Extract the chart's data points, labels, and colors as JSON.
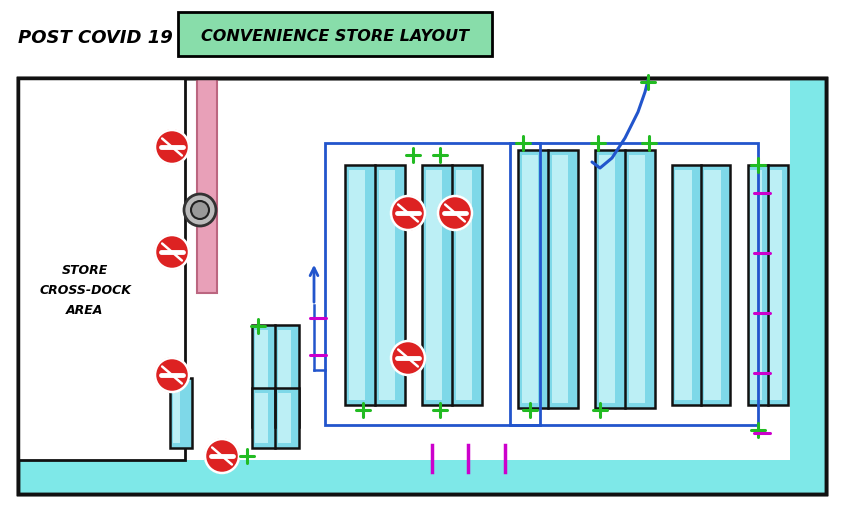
{
  "title_left": "POST COVID 19",
  "title_box": "CONVENIENCE STORE LAYOUT",
  "bg": "#ffffff",
  "black": "#111111",
  "cyan": "#7ee8e8",
  "cyan_shelf": "#7ed8e8",
  "pink": "#e8a0b8",
  "blue": "#2255cc",
  "green": "#22bb22",
  "magenta": "#cc00cc",
  "red": "#dd2222",
  "green_title": "#88ddaa",
  "shelf_highlight": "#c8f4f8"
}
